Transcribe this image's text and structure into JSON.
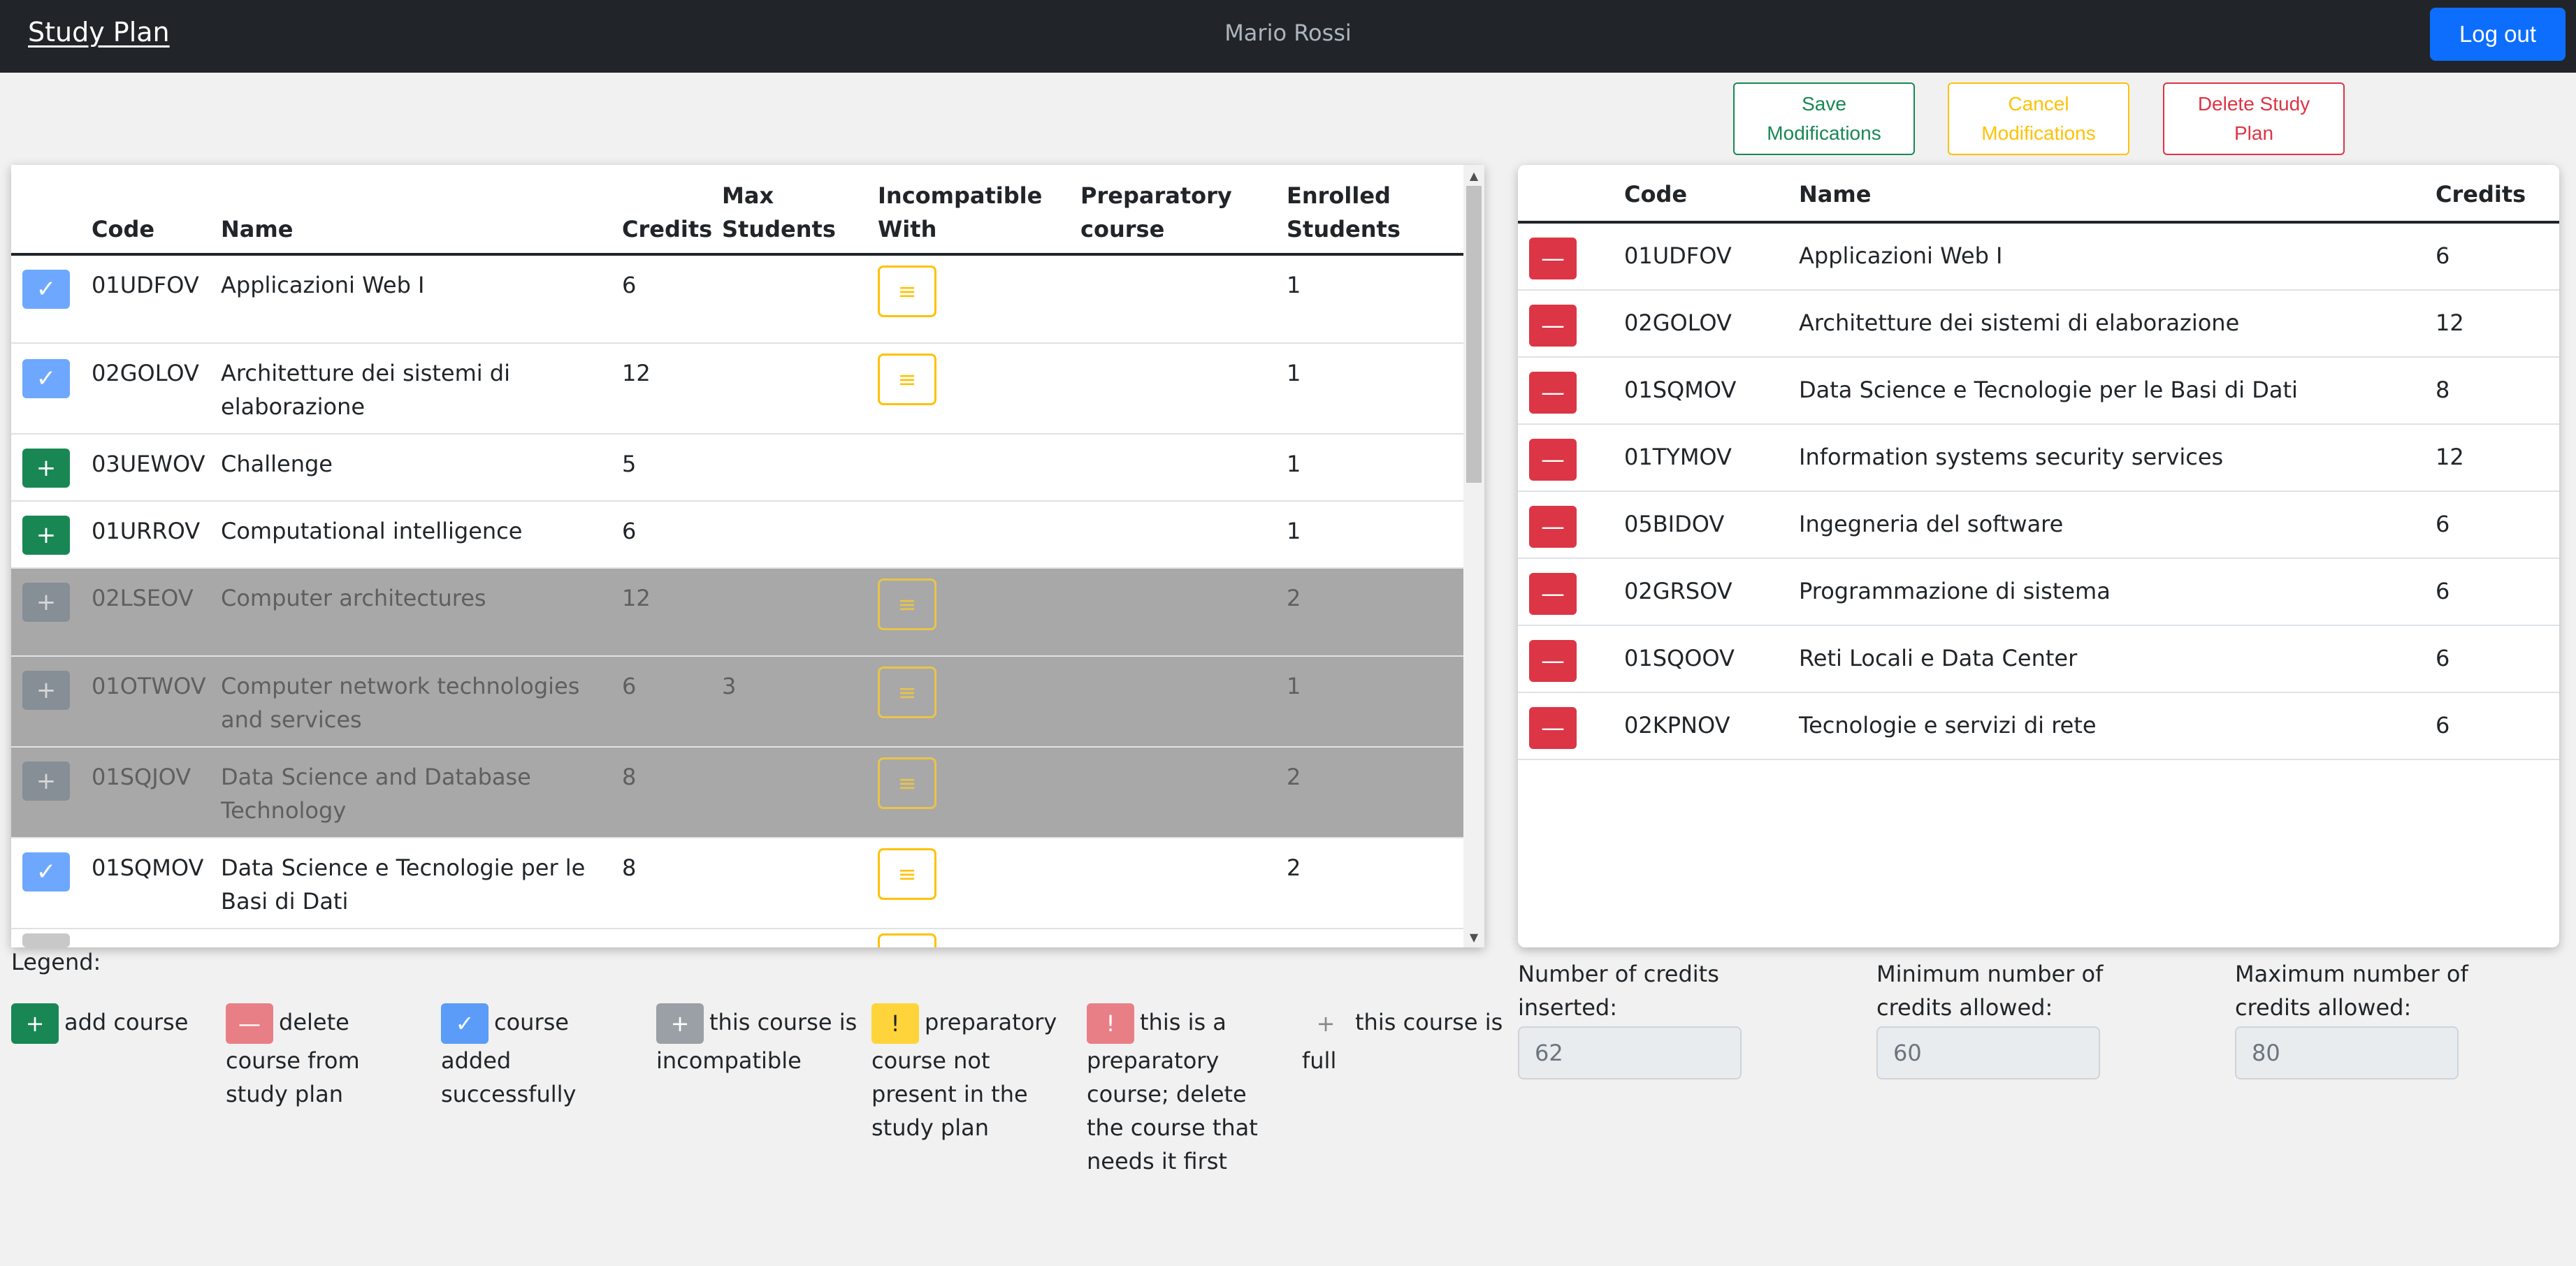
{
  "navbar": {
    "brand": "Study Plan",
    "user": "Mario Rossi",
    "logout_label": "Log out"
  },
  "actions": {
    "save_label": "Save Modifications",
    "cancel_label": "Cancel Modifications",
    "delete_label": "Delete Study Plan"
  },
  "courses_table": {
    "headers": {
      "code": "Code",
      "name": "Name",
      "credits": "Credits",
      "max_students": "Max Students",
      "incompatible": "Incompatible With",
      "preparatory": "Preparatory course",
      "enrolled": "Enrolled Students"
    },
    "rows": [
      {
        "code": "01UDFOV",
        "name": "Applicazioni Web I",
        "credits": "6",
        "max": "",
        "enrolled": "1",
        "action": "check",
        "incompatible_btn": true
      },
      {
        "code": "02GOLOV",
        "name": "Architetture dei sistemi di elaborazione",
        "credits": "12",
        "max": "",
        "enrolled": "1",
        "action": "check",
        "incompatible_btn": true
      },
      {
        "code": "03UEWOV",
        "name": "Challenge",
        "credits": "5",
        "max": "",
        "enrolled": "1",
        "action": "add",
        "incompatible_btn": false
      },
      {
        "code": "01URROV",
        "name": "Computational intelligence",
        "credits": "6",
        "max": "",
        "enrolled": "1",
        "action": "add",
        "incompatible_btn": false
      },
      {
        "code": "02LSEOV",
        "name": "Computer architectures",
        "credits": "12",
        "max": "",
        "enrolled": "2",
        "action": "incompatible",
        "incompatible_btn": true
      },
      {
        "code": "01OTWOV",
        "name": "Computer network technologies and services",
        "credits": "6",
        "max": "3",
        "enrolled": "1",
        "action": "incompatible",
        "incompatible_btn": true
      },
      {
        "code": "01SQJOV",
        "name": "Data Science and Database Technology",
        "credits": "8",
        "max": "",
        "enrolled": "2",
        "action": "incompatible",
        "incompatible_btn": true
      },
      {
        "code": "01SQMOV",
        "name": "Data Science e Tecnologie per le Basi di Dati",
        "credits": "8",
        "max": "",
        "enrolled": "2",
        "action": "check",
        "incompatible_btn": true
      }
    ],
    "incompatible_icon": "list-icon"
  },
  "plan_table": {
    "headers": {
      "code": "Code",
      "name": "Name",
      "credits": "Credits"
    },
    "rows": [
      {
        "code": "01UDFOV",
        "name": "Applicazioni Web I",
        "credits": "6"
      },
      {
        "code": "02GOLOV",
        "name": "Architetture dei sistemi di elaborazione",
        "credits": "12"
      },
      {
        "code": "01SQMOV",
        "name": "Data Science e Tecnologie per le Basi di Dati",
        "credits": "8"
      },
      {
        "code": "01TYMOV",
        "name": "Information systems security services",
        "credits": "12"
      },
      {
        "code": "05BIDOV",
        "name": "Ingegneria del software",
        "credits": "6"
      },
      {
        "code": "02GRSOV",
        "name": "Programmazione di sistema",
        "credits": "6"
      },
      {
        "code": "01SQOOV",
        "name": "Reti Locali e Data Center",
        "credits": "6"
      },
      {
        "code": "02KPNOV",
        "name": "Tecnologie e servizi di rete",
        "credits": "6"
      }
    ]
  },
  "legend": {
    "title": "Legend:",
    "items": [
      {
        "icon": "plus-icon",
        "text": "add course"
      },
      {
        "icon": "minus-icon",
        "text": "delete course from study plan"
      },
      {
        "icon": "check-icon",
        "text": "course added successfully"
      },
      {
        "icon": "plus-icon",
        "text": "this course is incompatible"
      },
      {
        "icon": "exclamation-icon",
        "text": "preparatory course not present in the study plan"
      },
      {
        "icon": "exclamation-icon",
        "text": "this is a preparatory course; delete the course that needs it first"
      },
      {
        "icon": "plus-icon",
        "text": "this course is full"
      }
    ]
  },
  "credits": {
    "inserted_label": "Number of credits inserted:",
    "inserted_value": "62",
    "min_label": "Minimum number of credits allowed:",
    "min_value": "60",
    "max_label": "Maximum number of credits allowed:",
    "max_value": "80"
  },
  "colors": {
    "navbar": "#212529",
    "primary": "#0d6efd",
    "success": "#198754",
    "warning": "#ffc107",
    "danger": "#dc3545"
  }
}
